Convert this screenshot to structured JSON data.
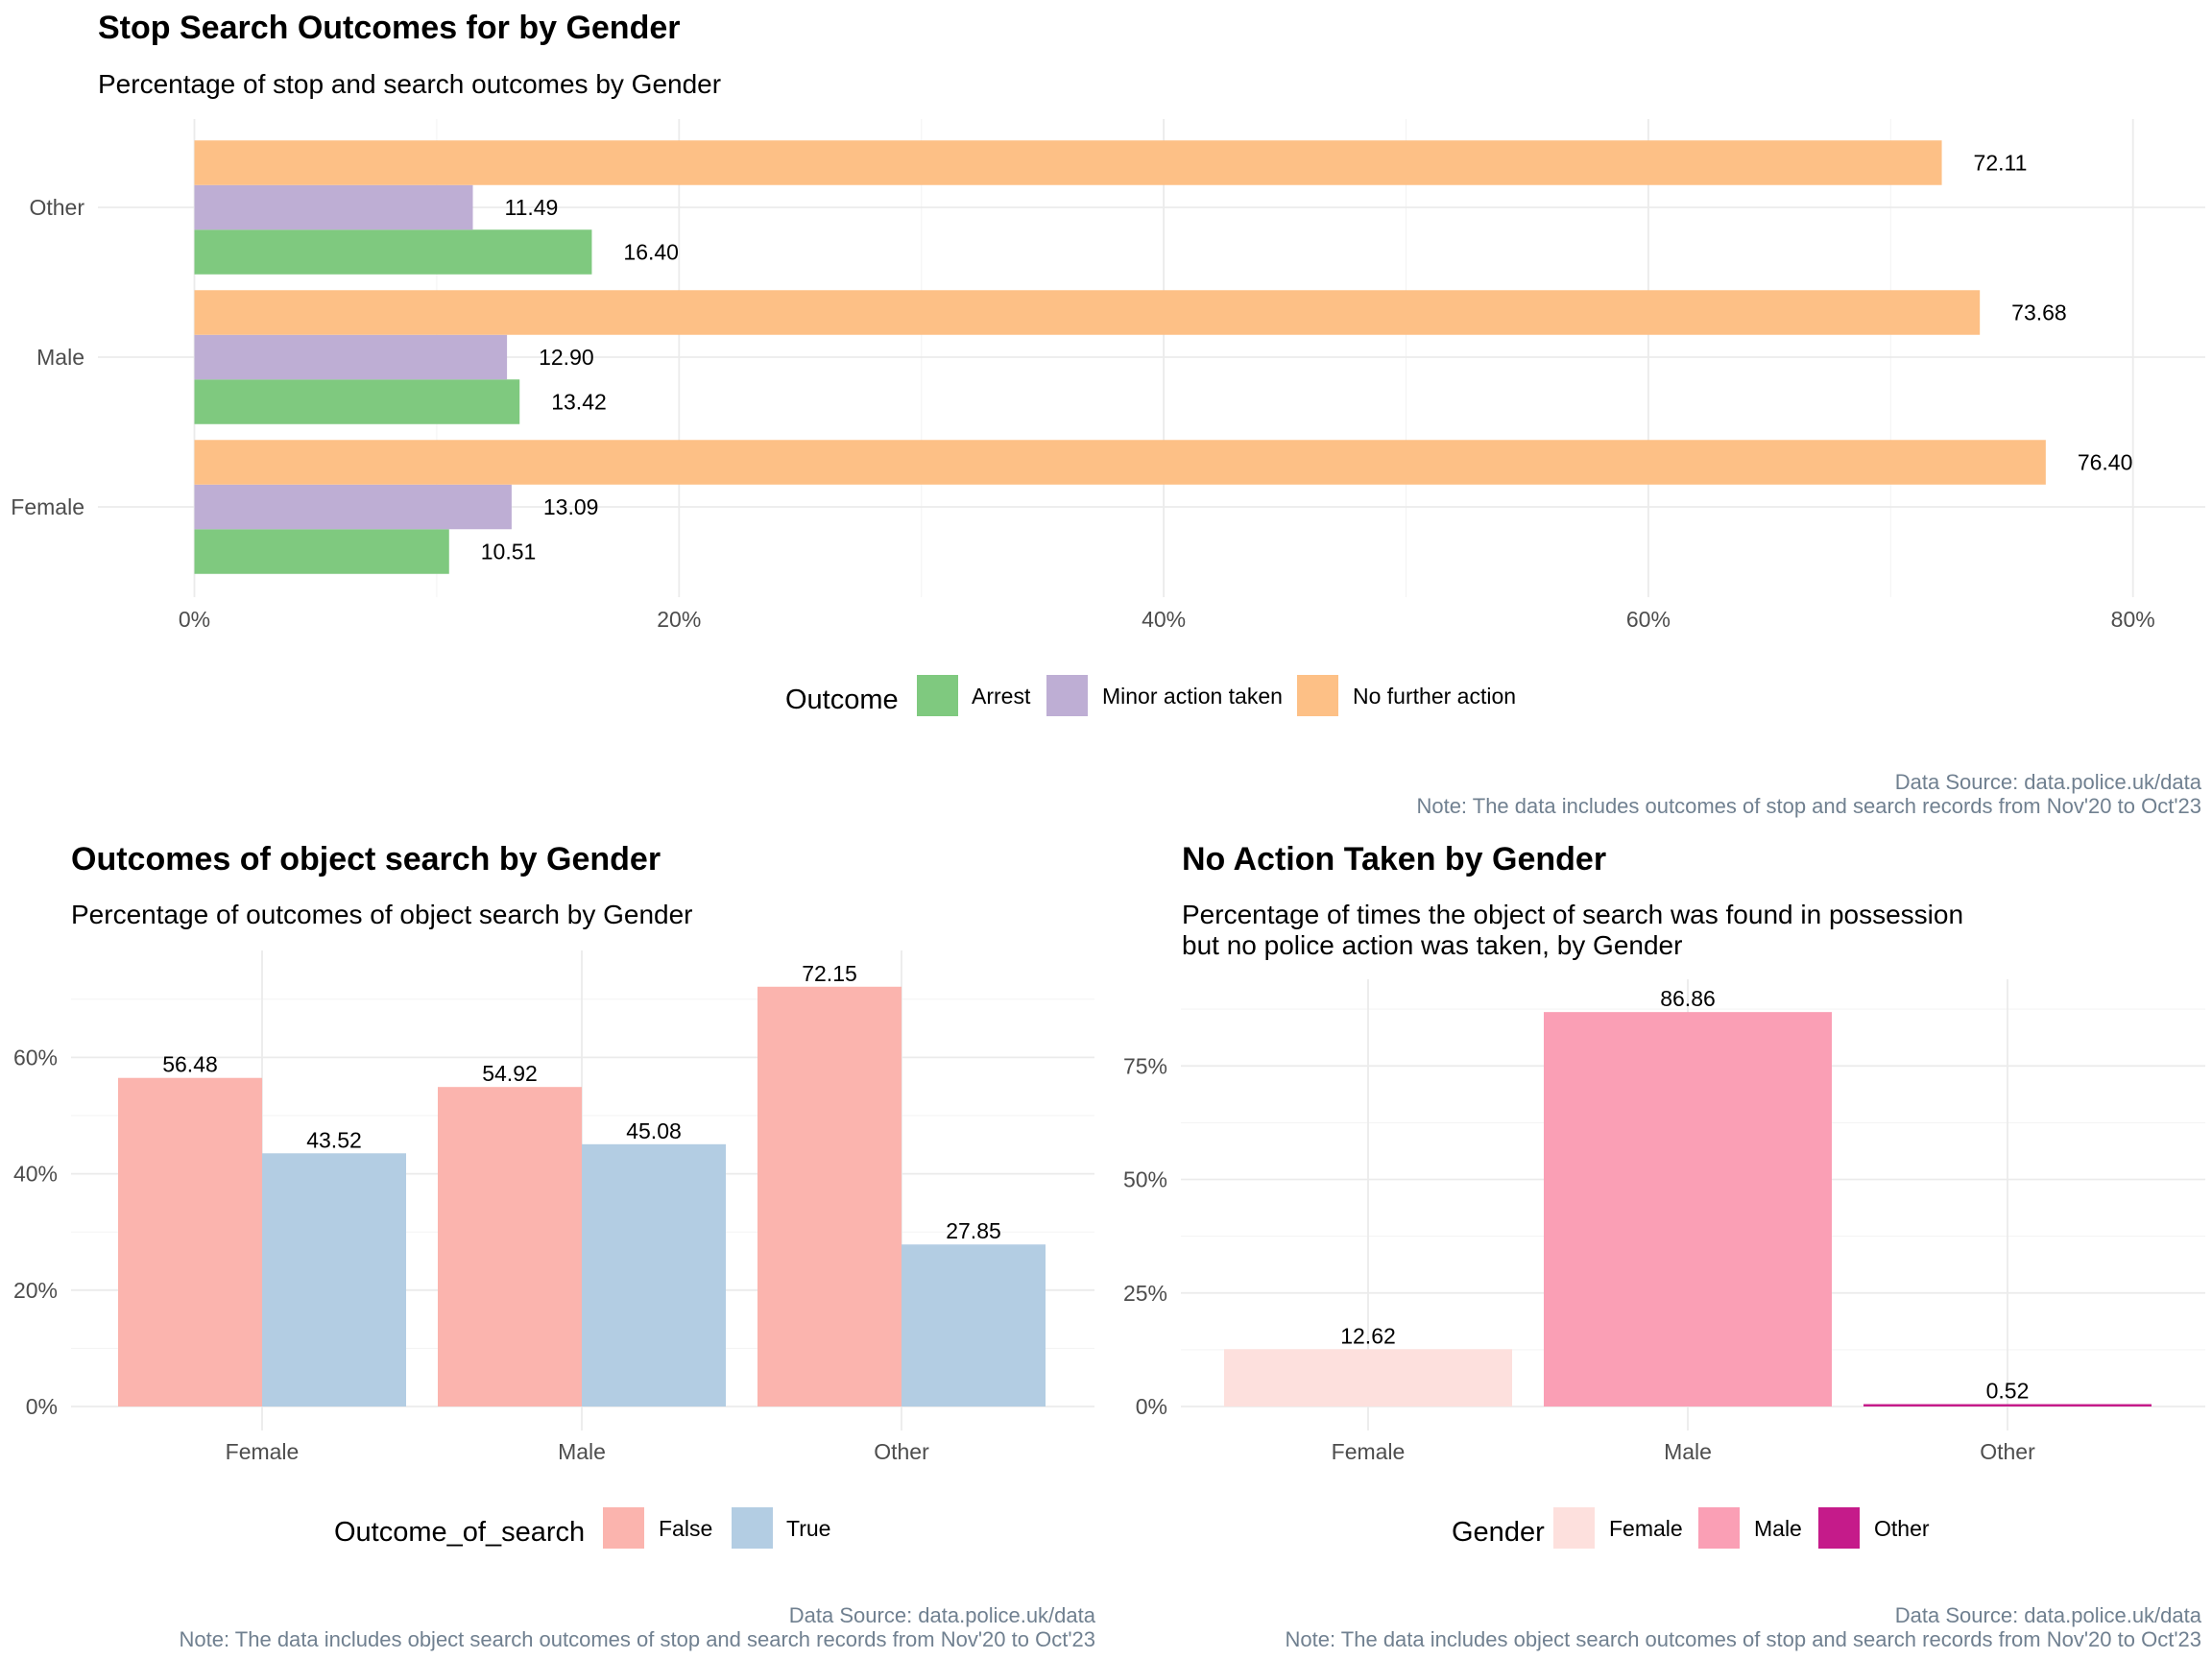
{
  "chart_data": [
    {
      "type": "bar",
      "orientation": "horizontal",
      "title": "Stop Search Outcomes for by Gender",
      "subtitle": "Percentage of stop and search outcomes by Gender",
      "categories": [
        "Female",
        "Male",
        "Other"
      ],
      "series": [
        {
          "name": "Arrest",
          "color": "#7fc97f",
          "values": [
            10.51,
            13.42,
            16.4
          ],
          "labels": [
            "10.51",
            "13.42",
            "16.40"
          ]
        },
        {
          "name": "Minor action taken",
          "color": "#beaed4",
          "values": [
            13.09,
            12.9,
            11.49
          ],
          "labels": [
            "13.09",
            "12.90",
            "11.49"
          ]
        },
        {
          "name": "No further action",
          "color": "#fdc086",
          "values": [
            76.4,
            73.68,
            72.11
          ],
          "labels": [
            "76.40",
            "73.68",
            "72.11"
          ]
        }
      ],
      "xlim": [
        0,
        80
      ],
      "xticks": [
        0,
        20,
        40,
        60,
        80
      ],
      "xtick_labels": [
        "0%",
        "20%",
        "40%",
        "60%",
        "80%"
      ],
      "legend_title": "Outcome",
      "legend_position": "bottom",
      "caption_line1": "Data Source: data.police.uk/data",
      "caption_line2": "Note: The data includes outcomes of stop and search records from Nov'20 to Oct'23"
    },
    {
      "type": "bar",
      "orientation": "vertical",
      "title": "Outcomes of object search by Gender",
      "subtitle": "Percentage of outcomes of object search by Gender",
      "categories": [
        "Female",
        "Male",
        "Other"
      ],
      "series": [
        {
          "name": "False",
          "color": "#fbb4ae",
          "values": [
            56.48,
            54.92,
            72.15
          ],
          "labels": [
            "56.48",
            "54.92",
            "72.15"
          ]
        },
        {
          "name": "True",
          "color": "#b3cde3",
          "values": [
            43.52,
            45.08,
            27.85
          ],
          "labels": [
            "43.52",
            "45.08",
            "27.85"
          ]
        }
      ],
      "ylim": [
        0,
        75
      ],
      "yticks": [
        0,
        20,
        40,
        60
      ],
      "ytick_labels": [
        "0%",
        "20%",
        "40%",
        "60%"
      ],
      "legend_title": "Outcome_of_search",
      "legend_position": "bottom",
      "caption_line1": "Data Source: data.police.uk/data",
      "caption_line2": "Note: The data includes object search outcomes of stop and search records from Nov'20 to Oct'23"
    },
    {
      "type": "bar",
      "orientation": "vertical",
      "title": "No Action Taken by Gender",
      "subtitle": "Percentage of times the object of search was found in possession",
      "subtitle_line2": "but no police action was taken, by Gender",
      "categories": [
        "Female",
        "Male",
        "Other"
      ],
      "values": [
        12.62,
        86.86,
        0.52
      ],
      "labels": [
        "12.62",
        "86.86",
        "0.52"
      ],
      "colors": [
        "#fde0dd",
        "#fa9fb5",
        "#c51b8a"
      ],
      "ylim": [
        0,
        90
      ],
      "yticks": [
        0,
        25,
        50,
        75
      ],
      "ytick_labels": [
        "0%",
        "25%",
        "50%",
        "75%"
      ],
      "legend_title": "Gender",
      "legend_entries": [
        "Female",
        "Male",
        "Other"
      ],
      "legend_position": "bottom",
      "caption_line1": "Data Source: data.police.uk/data",
      "caption_line2": "Note: The data includes object search outcomes of stop and search records from Nov'20 to Oct'23"
    }
  ]
}
